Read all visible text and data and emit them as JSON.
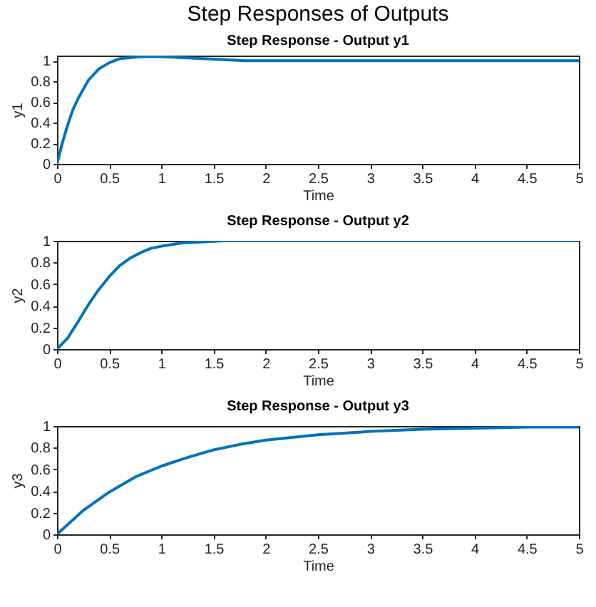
{
  "chart_data": [
    {
      "type": "line",
      "title": "Step Responses of Outputs",
      "subtitle": "Step Response - Output y1",
      "xlabel": "Time",
      "ylabel": "y1",
      "x": [
        0,
        0.05,
        0.1,
        0.15,
        0.2,
        0.3,
        0.4,
        0.5,
        0.6,
        0.7,
        0.8,
        0.9,
        1.0,
        1.2,
        1.4,
        1.6,
        1.8,
        2.0,
        2.5,
        3,
        4,
        5
      ],
      "values": [
        0,
        0.2,
        0.37,
        0.52,
        0.63,
        0.81,
        0.92,
        0.98,
        1.02,
        1.03,
        1.04,
        1.04,
        1.04,
        1.03,
        1.02,
        1.01,
        1.0,
        1.0,
        1.0,
        1.0,
        1.0,
        1.0
      ],
      "color": "#0072bd",
      "xlim": [
        0,
        5
      ],
      "ylim": [
        0,
        1.05
      ],
      "xticks": [
        0,
        0.5,
        1,
        1.5,
        2,
        2.5,
        3,
        3.5,
        4,
        4.5,
        5
      ],
      "yticks": [
        0,
        0.2,
        0.4,
        0.6,
        0.8,
        1
      ]
    },
    {
      "type": "line",
      "title": "Step Response - Output y2",
      "xlabel": "Time",
      "ylabel": "y2",
      "x": [
        0,
        0.1,
        0.2,
        0.3,
        0.4,
        0.5,
        0.6,
        0.7,
        0.8,
        0.9,
        1.0,
        1.2,
        1.4,
        1.6,
        2,
        3,
        4,
        5
      ],
      "values": [
        0,
        0.1,
        0.25,
        0.41,
        0.55,
        0.67,
        0.77,
        0.84,
        0.89,
        0.93,
        0.95,
        0.98,
        0.99,
        1.0,
        1.0,
        1.0,
        1.0,
        1.0
      ],
      "color": "#0072bd",
      "xlim": [
        0,
        5
      ],
      "ylim": [
        0,
        1
      ],
      "xticks": [
        0,
        0.5,
        1,
        1.5,
        2,
        2.5,
        3,
        3.5,
        4,
        4.5,
        5
      ],
      "yticks": [
        0,
        0.2,
        0.4,
        0.6,
        0.8,
        1
      ]
    },
    {
      "type": "line",
      "title": "Step Response - Output y3",
      "xlabel": "Time",
      "ylabel": "y3",
      "x": [
        0,
        0.25,
        0.5,
        0.75,
        1,
        1.25,
        1.5,
        1.75,
        2,
        2.5,
        3,
        3.5,
        4,
        4.5,
        5
      ],
      "values": [
        0,
        0.22,
        0.39,
        0.53,
        0.63,
        0.71,
        0.78,
        0.83,
        0.87,
        0.92,
        0.95,
        0.97,
        0.98,
        0.99,
        0.99
      ],
      "color": "#0072bd",
      "xlim": [
        0,
        5
      ],
      "ylim": [
        0,
        1
      ],
      "xticks": [
        0,
        0.5,
        1,
        1.5,
        2,
        2.5,
        3,
        3.5,
        4,
        4.5,
        5
      ],
      "yticks": [
        0,
        0.2,
        0.4,
        0.6,
        0.8,
        1
      ]
    }
  ]
}
